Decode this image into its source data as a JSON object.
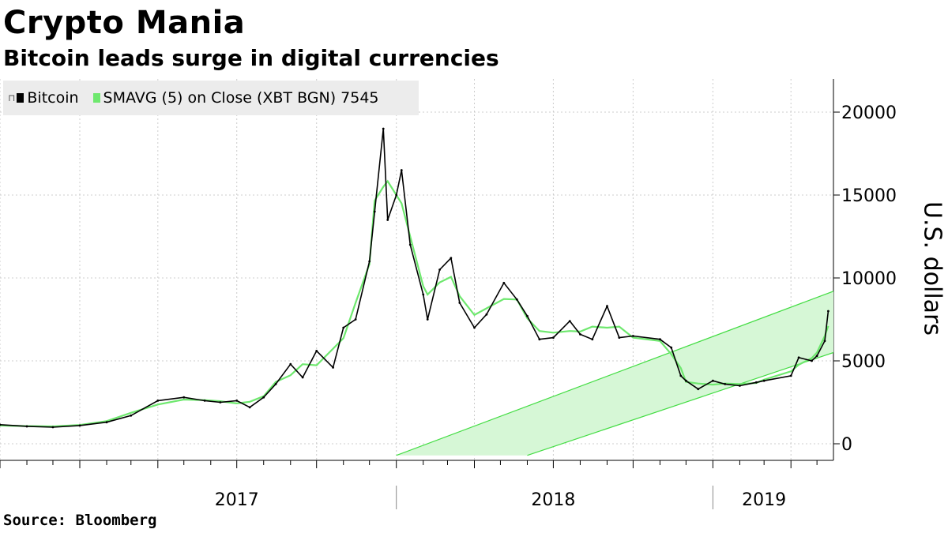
{
  "title": "Crypto Mania",
  "subtitle": "Bitcoin leads surge in digital currencies",
  "ylabel": "U.S. dollars",
  "source": "Source: Bloomberg",
  "legend": {
    "bitcoin": "Bitcoin",
    "smavg": "SMAVG (5)",
    "note": "on Close (XBT BGN) 7545"
  },
  "colors": {
    "price": "#000000",
    "smavg": "#6ee86e",
    "channel_fill": "#d6f7d6",
    "channel_line": "#44dd44",
    "grid": "#cccccc"
  },
  "chart_data": {
    "type": "line",
    "x_range": [
      "2016-10-01",
      "2019-05-20"
    ],
    "ylim": [
      -1000,
      22000
    ],
    "yticks": [
      0,
      5000,
      10000,
      15000,
      20000
    ],
    "year_labels": [
      {
        "label": "2017",
        "date": "2017-07-01"
      },
      {
        "label": "2018",
        "date": "2018-07-01"
      },
      {
        "label": "2019",
        "date": "2019-03-01"
      }
    ],
    "year_dividers": [
      "2018-01-01",
      "2019-01-01"
    ],
    "series": [
      {
        "name": "Bitcoin",
        "x": [
          "2016-10-01",
          "2016-11-01",
          "2016-12-01",
          "2017-01-01",
          "2017-02-01",
          "2017-03-01",
          "2017-04-01",
          "2017-05-01",
          "2017-05-25",
          "2017-06-12",
          "2017-07-01",
          "2017-07-16",
          "2017-08-01",
          "2017-08-15",
          "2017-09-01",
          "2017-09-15",
          "2017-10-01",
          "2017-10-20",
          "2017-11-01",
          "2017-11-15",
          "2017-12-01",
          "2017-12-07",
          "2017-12-17",
          "2017-12-22",
          "2018-01-01",
          "2018-01-07",
          "2018-01-17",
          "2018-02-01",
          "2018-02-06",
          "2018-02-20",
          "2018-03-05",
          "2018-03-15",
          "2018-04-01",
          "2018-04-15",
          "2018-05-05",
          "2018-05-20",
          "2018-06-01",
          "2018-06-15",
          "2018-07-01",
          "2018-07-20",
          "2018-08-01",
          "2018-08-15",
          "2018-09-01",
          "2018-09-15",
          "2018-10-01",
          "2018-11-01",
          "2018-11-14",
          "2018-11-25",
          "2018-12-01",
          "2018-12-15",
          "2019-01-01",
          "2019-01-15",
          "2019-02-01",
          "2019-02-20",
          "2019-03-01",
          "2019-04-01",
          "2019-04-10",
          "2019-04-25",
          "2019-05-01",
          "2019-05-10",
          "2019-05-14"
        ],
        "y": [
          1150,
          1050,
          1000,
          1100,
          1300,
          1700,
          2600,
          2800,
          2600,
          2500,
          2600,
          2200,
          2800,
          3600,
          4800,
          4000,
          5600,
          4600,
          7000,
          7500,
          11000,
          14000,
          19000,
          13500,
          15000,
          16500,
          12000,
          9000,
          7500,
          10500,
          11200,
          8500,
          7000,
          7800,
          9700,
          8700,
          7700,
          6300,
          6400,
          7400,
          6600,
          6300,
          8300,
          6400,
          6500,
          6300,
          5800,
          4100,
          3800,
          3300,
          3800,
          3600,
          3500,
          3700,
          3800,
          4100,
          5200,
          5000,
          5300,
          6200,
          8000
        ]
      }
    ],
    "channel": {
      "upper": [
        {
          "x": "2018-01-01",
          "y": -700
        },
        {
          "x": "2019-05-20",
          "y": 9200
        }
      ],
      "lower": [
        {
          "x": "2018-06-01",
          "y": -700
        },
        {
          "x": "2019-05-20",
          "y": 5500
        }
      ]
    }
  }
}
